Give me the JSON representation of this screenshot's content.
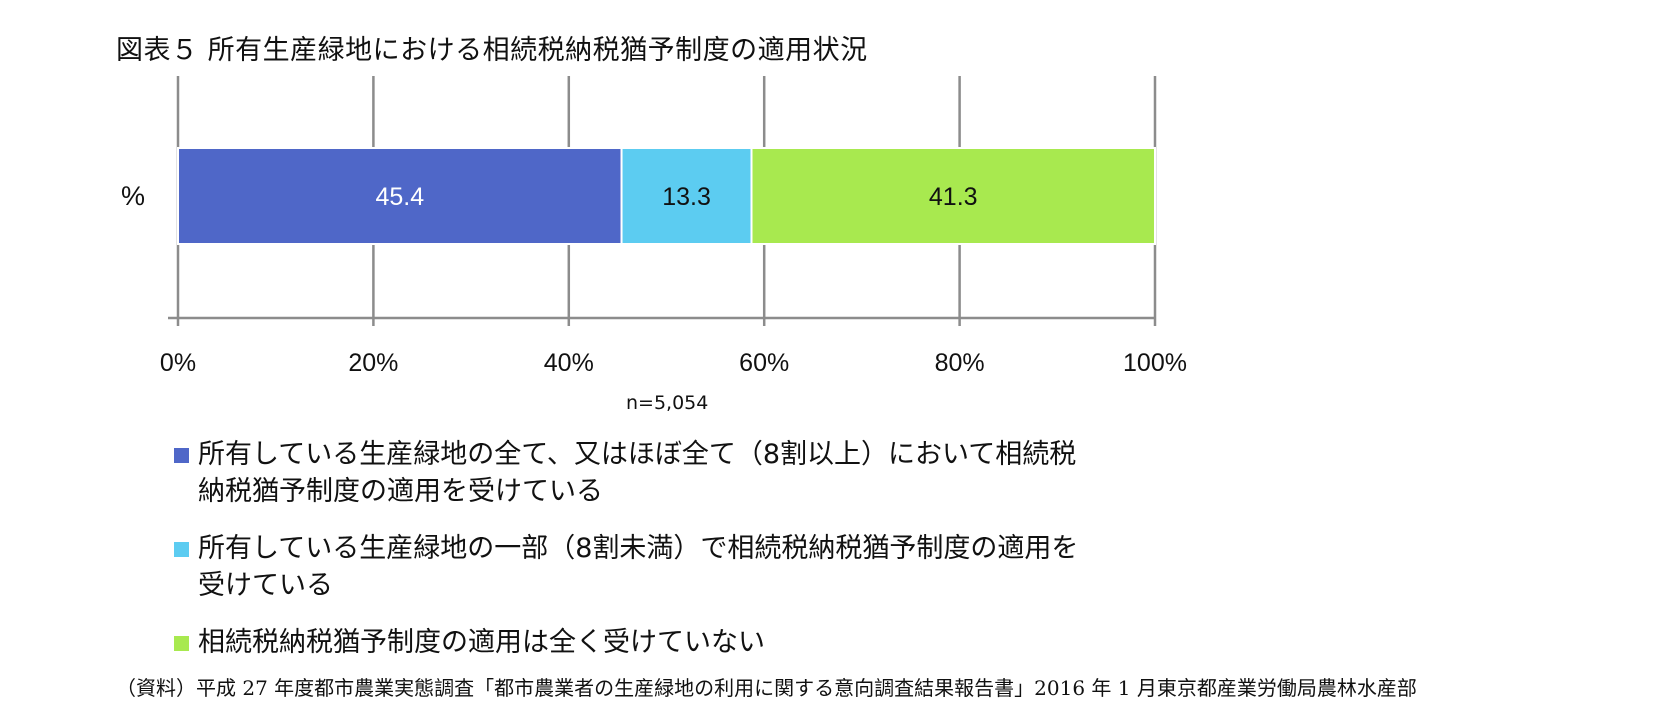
{
  "title": "図表５ 所有生産緑地における相続税納税猶予制度の適用状況",
  "sample_note": "n=5,054",
  "source": "（資料）平成 27 年度都市農業実態調査「都市農業者の生産緑地の利用に関する意向調査結果報告書」2016 年 1 月東京都産業労働局農林水産部",
  "chart_data": {
    "type": "bar",
    "orientation": "horizontal",
    "stacked": true,
    "categories": [
      "%"
    ],
    "series": [
      {
        "name": "所有している生産緑地の全て、又はほぼ全て（8割以上）において相続税納税猶予制度の適用を受けている",
        "name_lines": [
          "所有している生産緑地の全て、又はほぼ全て（8割以上）において相続税",
          "納税猶予制度の適用を受けている"
        ],
        "values": [
          45.4
        ],
        "color": "#4f67c8",
        "label_color": "#ffffff"
      },
      {
        "name": "所有している生産緑地の一部（8割未満）で相続税納税猶予制度の適用を受けている",
        "name_lines": [
          "所有している生産緑地の一部（8割未満）で相続税納税猶予制度の適用を",
          "受けている"
        ],
        "values": [
          13.3
        ],
        "color": "#5cccf1",
        "label_color": "#111111"
      },
      {
        "name": "相続税納税猶予制度の適用は全く受けていない",
        "name_lines": [
          "相続税納税猶予制度の適用は全く受けていない"
        ],
        "values": [
          41.3
        ],
        "color": "#a8e94f",
        "label_color": "#111111"
      }
    ],
    "xlim": [
      0,
      100
    ],
    "xticks": [
      0,
      20,
      40,
      60,
      80,
      100
    ],
    "xtick_labels": [
      "0%",
      "20%",
      "40%",
      "60%",
      "80%",
      "100%"
    ],
    "grid": true,
    "legend_position": "bottom"
  }
}
